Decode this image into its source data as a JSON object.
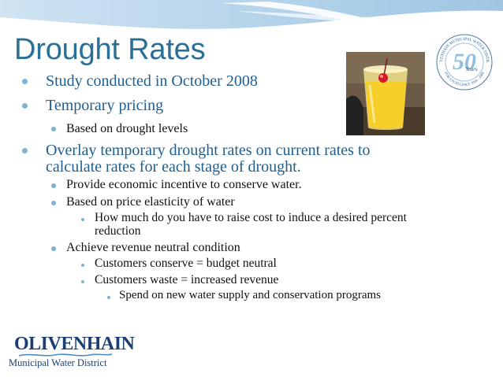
{
  "slide": {
    "title": "Drought Rates",
    "bullets": [
      {
        "text": "Study conducted in October 2008"
      },
      {
        "text": "Temporary pricing"
      },
      {
        "text": "Based on drought levels"
      },
      {
        "text": "Overlay temporary drought rates on current rates to"
      },
      {
        "text": "calculate rates for each stage of drought."
      },
      {
        "text": "Provide economic incentive to conserve water."
      },
      {
        "text": "Based on price elasticity of water"
      },
      {
        "text": "How much do you have to raise cost to induce a desired percent"
      },
      {
        "text": "reduction"
      },
      {
        "text": "Achieve revenue neutral condition"
      },
      {
        "text": "Customers conserve = budget neutral"
      },
      {
        "text": "Customers waste = increased revenue"
      },
      {
        "text": "Spend on new water supply and conservation  programs"
      }
    ]
  },
  "badge": {
    "ring_text_top": "OLIVENHAIN MUNICIPAL WATER DISTRICT",
    "ring_text_bottom": "FOR EXCELLENCE 1959 - 2009",
    "number": "50",
    "label": "Years"
  },
  "logo": {
    "name": "OLIVENHAIN",
    "subtitle": "Municipal Water District"
  },
  "colors": {
    "title": "#2a6f97",
    "level1_text": "#1f5e8e",
    "bullet": "#7fb3d5",
    "logo": "#1b3f73"
  }
}
